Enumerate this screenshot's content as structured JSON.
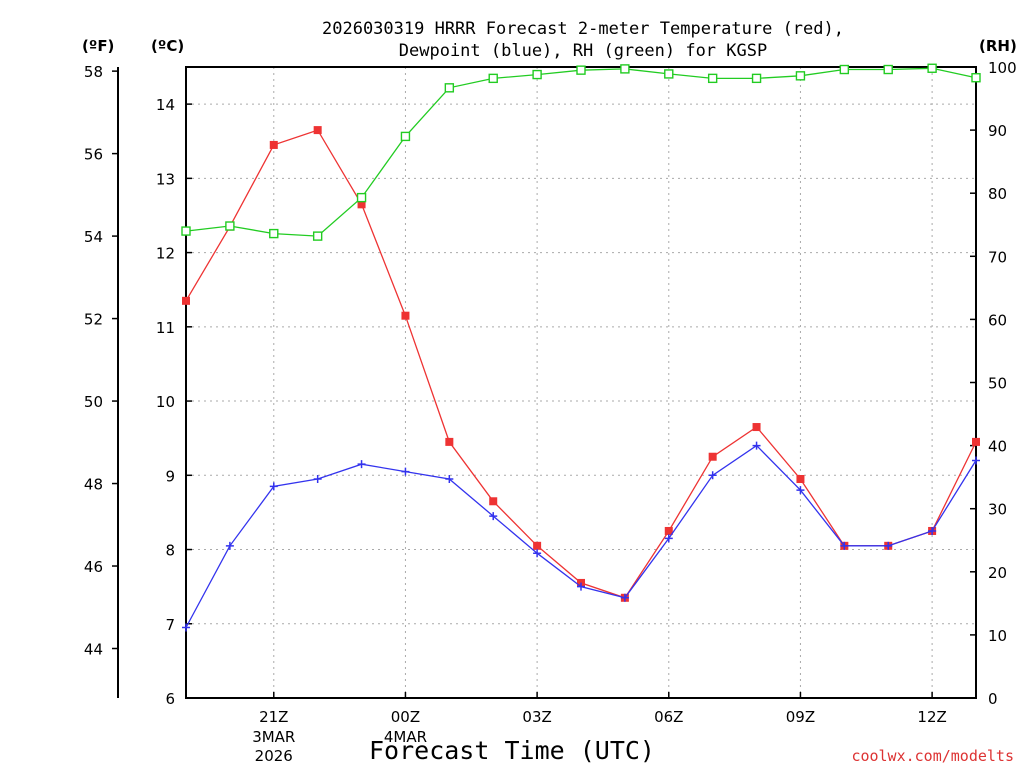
{
  "chart_data": {
    "type": "line",
    "title_line1": "2026030319 HRRR Forecast 2-meter Temperature (red),",
    "title_line2": "Dewpoint (blue), RH (green) for KGSP",
    "xlabel": "Forecast Time (UTC)",
    "credit": "coolwx.com/modelts",
    "units": {
      "fahrenheit": "(ºF)",
      "celsius": "(ºC)",
      "rh": "(RH)"
    },
    "x": [
      19,
      20,
      21,
      22,
      23,
      24,
      25,
      26,
      27,
      28,
      29,
      30,
      31,
      32,
      33,
      34,
      35,
      36,
      37
    ],
    "xlim": [
      19,
      37
    ],
    "x_ticks": [
      {
        "x": 21,
        "label": "21Z",
        "sub1": "3MAR",
        "sub2": "2026"
      },
      {
        "x": 24,
        "label": "00Z",
        "sub1": "4MAR",
        "sub2": ""
      },
      {
        "x": 27,
        "label": "03Z",
        "sub1": "",
        "sub2": ""
      },
      {
        "x": 30,
        "label": "06Z",
        "sub1": "",
        "sub2": ""
      },
      {
        "x": 33,
        "label": "09Z",
        "sub1": "",
        "sub2": ""
      },
      {
        "x": 36,
        "label": "12Z",
        "sub1": "",
        "sub2": ""
      }
    ],
    "celsius_axis": {
      "min": 6,
      "max": 14.5,
      "ticks": [
        "6",
        "7",
        "8",
        "9",
        "10",
        "11",
        "12",
        "13",
        "14"
      ]
    },
    "fahrenheit_ticks": [
      "44",
      "46",
      "48",
      "50",
      "52",
      "54",
      "56",
      "58"
    ],
    "rh_axis": {
      "min": 0,
      "max": 100,
      "ticks": [
        "0",
        "10",
        "20",
        "30",
        "40",
        "50",
        "60",
        "70",
        "80",
        "90",
        "100"
      ]
    },
    "series": [
      {
        "name": "Temperature",
        "unit": "C",
        "color": "#ee3333",
        "marker": "filled-square",
        "values": [
          11.35,
          12.35,
          13.45,
          13.65,
          12.65,
          11.15,
          9.45,
          8.65,
          8.05,
          7.55,
          7.35,
          8.25,
          9.25,
          9.65,
          8.95,
          8.05,
          8.05,
          8.25,
          9.45
        ]
      },
      {
        "name": "Dewpoint",
        "unit": "C",
        "color": "#3333ee",
        "marker": "plus",
        "values": [
          6.95,
          8.05,
          8.85,
          8.95,
          9.15,
          9.05,
          8.95,
          8.45,
          7.95,
          7.5,
          7.35,
          8.15,
          9.0,
          9.4,
          8.8,
          8.05,
          8.05,
          8.25,
          9.2
        ]
      },
      {
        "name": "RH",
        "unit": "%",
        "color": "#22cc22",
        "marker": "open-square",
        "values": [
          74.0,
          74.8,
          73.6,
          73.2,
          79.3,
          89.0,
          96.7,
          98.2,
          98.8,
          99.5,
          99.7,
          98.9,
          98.2,
          98.2,
          98.6,
          99.6,
          99.6,
          99.8,
          98.3
        ]
      }
    ]
  }
}
